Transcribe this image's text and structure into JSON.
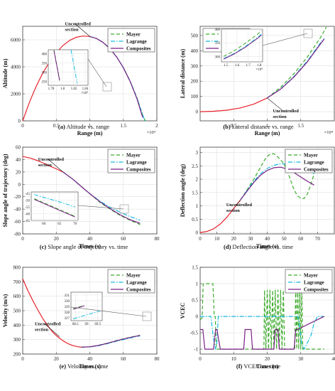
{
  "styles": {
    "uncontrolled": "#e8212b",
    "mayer": "#3cab2b",
    "lagrange": "#14b9e0",
    "composites": "#7a1f86",
    "axis": "#404040",
    "grid": "#d9d9d9"
  },
  "series_labels": {
    "mayer": "Mayer",
    "lagrange": "Lagrange",
    "composites": "Composites"
  },
  "chart_data": [
    {
      "id": "a",
      "type": "line",
      "caption_label": "(a)",
      "caption_text": "Altitude vs. range",
      "xlabel": "Range (m)",
      "ylabel": "Altitude (m)",
      "xlim": [
        0,
        20000
      ],
      "ylim": [
        0,
        7000
      ],
      "xticks": [
        0,
        0.5,
        1,
        1.5,
        2
      ],
      "yticks": [
        0,
        2000,
        4000,
        6000
      ],
      "x_multiplier": "×10⁴",
      "legend": "top-right",
      "annotation": {
        "text": "Uncontrolled section",
        "at": [
          10000,
          6250
        ]
      },
      "uncontrolled": {
        "x": [
          0,
          1000,
          2000,
          3000,
          4000,
          5000,
          6000,
          7000,
          8000,
          9000,
          10000
        ],
        "y": [
          0,
          1380,
          2550,
          3540,
          4370,
          5050,
          5580,
          5960,
          6190,
          6280,
          6250
        ]
      },
      "series": [
        {
          "key": "mayer",
          "x": [
            10000,
            11000,
            12000,
            13000,
            14000,
            15000,
            16000,
            17000,
            18000,
            18300
          ],
          "y": [
            6250,
            6100,
            5800,
            5350,
            4740,
            3950,
            2960,
            1740,
            270,
            0
          ]
        },
        {
          "key": "lagrange",
          "x": [
            10000,
            11000,
            12000,
            13000,
            14000,
            15000,
            16000,
            17000,
            18000,
            18200
          ],
          "y": [
            6250,
            6100,
            5800,
            5350,
            4740,
            3950,
            2960,
            1740,
            280,
            0
          ]
        },
        {
          "key": "composites",
          "x": [
            10000,
            11000,
            12000,
            13000,
            14000,
            15000,
            16000,
            17000,
            17800,
            17900
          ],
          "y": [
            6250,
            6100,
            5800,
            5340,
            4730,
            3930,
            2930,
            1680,
            400,
            250
          ]
        }
      ],
      "inset": {
        "xlim": [
          17750,
          18450
        ],
        "ylim": [
          230,
          420
        ],
        "xticks": [
          1.78,
          1.8,
          1.82,
          1.84
        ],
        "yticks": [
          250,
          300,
          350,
          400
        ],
        "x_multiplier": "×10⁴",
        "series": [
          {
            "key": "mayer",
            "x": [
              17850,
              17950
            ],
            "y": [
              420,
              260
            ]
          },
          {
            "key": "lagrange",
            "x": [
              18150,
              18260
            ],
            "y": [
              420,
              240
            ]
          },
          {
            "key": "composites",
            "x": [
              17850,
              17950
            ],
            "y": [
              415,
              255
            ]
          }
        ]
      }
    },
    {
      "id": "b",
      "type": "line",
      "caption_label": "(b)",
      "caption_text": "Lateral distance vs. range",
      "xlabel": "Range (m)",
      "ylabel": "Lateral distance (m)",
      "xlim": [
        0,
        20000
      ],
      "ylim": [
        -60,
        560
      ],
      "xticks": [
        0.5,
        1,
        1.5
      ],
      "yticks": [
        0,
        100,
        200,
        300,
        400,
        500
      ],
      "x_multiplier": "×10⁴",
      "legend": "top-left",
      "annotation": {
        "text": "Uncontrolled section",
        "at": [
          10000,
          90
        ]
      },
      "uncontrolled": {
        "x": [
          0,
          2000,
          4000,
          6000,
          8000,
          10000
        ],
        "y": [
          0,
          3,
          10,
          25,
          50,
          90
        ]
      },
      "series": [
        {
          "key": "mayer",
          "x": [
            10000,
            12000,
            14000,
            16000,
            18000,
            18800
          ],
          "y": [
            90,
            160,
            250,
            360,
            490,
            555
          ]
        },
        {
          "key": "lagrange",
          "x": [
            10000,
            12000,
            14000,
            16000,
            18000,
            18500
          ],
          "y": [
            90,
            150,
            232,
            334,
            455,
            480
          ]
        },
        {
          "key": "composites",
          "x": [
            10000,
            12000,
            14000,
            16000,
            18000,
            18500
          ],
          "y": [
            90,
            148,
            228,
            328,
            448,
            476
          ]
        }
      ],
      "inset": {
        "xlim": [
          14600,
          18300
        ],
        "ylim": [
          280,
          400
        ],
        "xticks": [
          1.5,
          1.6,
          1.7,
          1.8
        ],
        "yticks": [
          300,
          350,
          400
        ],
        "x_multiplier": "×10⁴",
        "series": [
          {
            "key": "mayer",
            "x": [
              14800,
              15800,
              16800,
              17800,
              18200
            ],
            "y": [
              300,
              322,
              350,
              380,
              395
            ]
          },
          {
            "key": "lagrange",
            "x": [
              14800,
              15800,
              16800,
              17800,
              18200
            ],
            "y": [
              292,
              312,
              338,
              368,
              382
            ]
          },
          {
            "key": "composites",
            "x": [
              14800,
              15800,
              16800,
              17800,
              18200
            ],
            "y": [
              290,
              310,
              335,
              365,
              378
            ]
          }
        ]
      }
    },
    {
      "id": "c",
      "type": "line",
      "caption_label": "(c)",
      "caption_text": "Slope angle of trajectory vs. time",
      "xlabel": "Times (s)",
      "ylabel": "Slope angle of trajectory (deg)",
      "xlim": [
        0,
        80
      ],
      "ylim": [
        -80,
        60
      ],
      "xticks": [
        0,
        20,
        40,
        60,
        80
      ],
      "yticks": [
        -80,
        -60,
        -40,
        -20,
        0,
        20,
        40,
        60
      ],
      "legend": "top-right",
      "annotation": {
        "text": "Uncontrolled section",
        "at": [
          24,
          20
        ]
      },
      "uncontrolled": {
        "x": [
          0,
          5,
          10,
          15,
          20,
          24
        ],
        "y": [
          45,
          42,
          37,
          31,
          25,
          20
        ]
      },
      "series": [
        {
          "key": "mayer",
          "x": [
            24,
            30,
            36,
            40,
            46,
            52,
            58,
            64,
            70
          ],
          "y": [
            20,
            8,
            -6,
            -15,
            -29,
            -40,
            -50,
            -58,
            -65
          ]
        },
        {
          "key": "lagrange",
          "x": [
            24,
            30,
            36,
            40,
            46,
            52,
            58,
            64,
            70
          ],
          "y": [
            20,
            8,
            -6,
            -15,
            -27,
            -37,
            -45,
            -52,
            -58
          ]
        },
        {
          "key": "composites",
          "x": [
            24,
            30,
            36,
            40,
            46,
            52,
            58,
            64,
            70
          ],
          "y": [
            20,
            8,
            -6,
            -15,
            -28,
            -39,
            -49,
            -57,
            -63
          ]
        }
      ],
      "inset": {
        "xlim": [
          56,
          71
        ],
        "ylim": [
          -65,
          -44
        ],
        "xticks": [
          60,
          65,
          70
        ],
        "yticks": [
          -45,
          -50,
          -55,
          -60,
          -65
        ],
        "series": [
          {
            "key": "mayer",
            "x": [
              57,
              60,
              63,
              66,
              70
            ],
            "y": [
              -49,
              -52,
              -55,
              -58,
              -62
            ]
          },
          {
            "key": "lagrange",
            "x": [
              57,
              60,
              63,
              66,
              70
            ],
            "y": [
              -46,
              -48,
              -50,
              -52,
              -55
            ]
          },
          {
            "key": "composites",
            "x": [
              57,
              60,
              63,
              66,
              70
            ],
            "y": [
              -49.5,
              -52.5,
              -55.5,
              -58.5,
              -62.5
            ]
          }
        ]
      }
    },
    {
      "id": "d",
      "type": "line",
      "caption_label": "(d)",
      "caption_text": "Deflection angle vs. time",
      "xlabel": "Times (s)",
      "ylabel": "Deflection angle (deg)",
      "xlim": [
        0,
        80
      ],
      "ylim": [
        -0.05,
        3.2
      ],
      "xticks": [
        0,
        10,
        20,
        30,
        40,
        50,
        60,
        70
      ],
      "yticks": [
        0,
        0.5,
        1,
        1.5,
        2,
        2.5,
        3
      ],
      "legend": "top-right",
      "annotation": {
        "text": "Uncontrolled section",
        "at": [
          24,
          1.2
        ]
      },
      "uncontrolled": {
        "x": [
          0,
          4,
          8,
          12,
          16,
          20,
          24
        ],
        "y": [
          0,
          0.04,
          0.14,
          0.32,
          0.58,
          0.9,
          1.22
        ]
      },
      "series": [
        {
          "key": "mayer",
          "x": [
            24,
            28,
            32,
            36,
            38,
            40,
            42,
            44,
            46,
            48,
            50,
            52,
            54,
            56,
            58,
            60,
            62,
            64,
            66,
            68
          ],
          "y": [
            1.22,
            1.6,
            2.0,
            2.45,
            2.68,
            2.85,
            2.95,
            2.95,
            2.85,
            2.72,
            2.58,
            2.3,
            1.95,
            1.6,
            1.38,
            1.28,
            1.28,
            1.45,
            1.8,
            2.2
          ]
        },
        {
          "key": "lagrange",
          "x": [
            24,
            28,
            32,
            36,
            40,
            44,
            48,
            52,
            56,
            60,
            64,
            68
          ],
          "y": [
            1.22,
            1.58,
            1.92,
            2.2,
            2.4,
            2.52,
            2.58,
            2.56,
            2.5,
            2.42,
            2.32,
            2.2
          ]
        },
        {
          "key": "composites",
          "x": [
            24,
            28,
            32,
            36,
            40,
            44,
            48,
            52,
            56,
            60,
            64,
            68
          ],
          "y": [
            1.22,
            1.55,
            1.88,
            2.15,
            2.33,
            2.43,
            2.45,
            2.38,
            2.25,
            2.08,
            1.92,
            1.78
          ]
        }
      ]
    },
    {
      "id": "e",
      "type": "line",
      "caption_label": "(e)",
      "caption_text": "Velocity vs. time",
      "xlabel": "Times (s)",
      "ylabel": "Velocity (m/s)",
      "xlim": [
        0,
        80
      ],
      "ylim": [
        200,
        800
      ],
      "xticks": [
        0,
        20,
        40,
        60,
        80
      ],
      "yticks": [
        200,
        300,
        400,
        500,
        600,
        700,
        800
      ],
      "legend": "top-right",
      "annotation": {
        "text": "Uncontrolled section",
        "at": [
          22,
          320
        ]
      },
      "uncontrolled": {
        "x": [
          0,
          3,
          6,
          9,
          12,
          15,
          18,
          21,
          24,
          27,
          30,
          33,
          35
        ],
        "y": [
          720,
          640,
          570,
          505,
          445,
          395,
          350,
          318,
          292,
          272,
          258,
          250,
          247
        ]
      },
      "series": [
        {
          "key": "mayer",
          "x": [
            35,
            40,
            45,
            50,
            55,
            60,
            65,
            70
          ],
          "y": [
            247,
            250,
            260,
            274,
            290,
            305,
            318,
            330
          ]
        },
        {
          "key": "lagrange",
          "x": [
            35,
            40,
            45,
            50,
            55,
            60,
            65,
            70
          ],
          "y": [
            247,
            249,
            257,
            270,
            285,
            300,
            313,
            326
          ]
        },
        {
          "key": "composites",
          "x": [
            35,
            40,
            45,
            50,
            55,
            60,
            65,
            70
          ],
          "y": [
            247,
            250,
            259,
            273,
            289,
            304,
            317,
            329
          ]
        }
      ],
      "inset": {
        "xlim": [
          68.3,
          69.7
        ],
        "ylim": [
          326.5,
          331.5
        ],
        "xticks": [
          68.5,
          69,
          69.5
        ],
        "yticks": [
          331,
          330,
          329,
          328,
          327
        ],
        "series": [
          {
            "key": "mayer",
            "x": [
              68.4,
              68.9
            ],
            "y": [
              328.6,
              329.2
            ]
          },
          {
            "key": "lagrange",
            "x": [
              68.4,
              69.6
            ],
            "y": [
              326.8,
              328.2
            ]
          },
          {
            "key": "composites",
            "x": [
              68.4,
              68.9
            ],
            "y": [
              328.5,
              329.1
            ]
          }
        ]
      }
    },
    {
      "id": "f",
      "type": "line",
      "caption_label": "(f)",
      "caption_text": "VCEC vs. time",
      "xlabel": "Times (s)",
      "ylabel": "VCEC",
      "xlim": [
        0,
        40
      ],
      "ylim": [
        -1.15,
        1.5
      ],
      "xticks": [
        0,
        10,
        20,
        30,
        40
      ],
      "yticks": [
        -1,
        -0.5,
        0,
        0.5,
        1,
        1.5
      ],
      "legend": "top-right",
      "series": [
        {
          "key": "mayer",
          "x": [
            0,
            0.6,
            0.9,
            1.8,
            2.6,
            3.2,
            3.8,
            4.2,
            4.5,
            4.8,
            5,
            19,
            19.2,
            19.6,
            20,
            20.4,
            20.8,
            21.2,
            21.6,
            22,
            22.4,
            22.8,
            23.2,
            23.6,
            24,
            24.4,
            24.8,
            25.2,
            25.6,
            28.2,
            28.5,
            28.8,
            29.1,
            29.4,
            29.7,
            30,
            30.3,
            30.6,
            31,
            37
          ],
          "y": [
            -0.1,
            -0.05,
            1,
            1,
            1,
            1,
            1,
            0,
            0,
            -1,
            -1,
            -1,
            0.8,
            -1,
            0.8,
            -1,
            0.8,
            -1,
            0.8,
            -1,
            0.8,
            -1,
            0.8,
            -1,
            0.8,
            -1,
            0.8,
            -1,
            -1,
            -1,
            0.9,
            -1,
            0.9,
            -1,
            0.9,
            -1,
            0.9,
            -1,
            -1,
            -1
          ]
        },
        {
          "key": "lagrange",
          "x": [
            0,
            1,
            2.5,
            3.2,
            4,
            4.6,
            5,
            5.4,
            5.8,
            23,
            23.3,
            29.2,
            29.6,
            30.2,
            31,
            33,
            34,
            35,
            36.8
          ],
          "y": [
            0,
            0,
            0,
            0,
            -0.7,
            -1,
            -0.8,
            0,
            0,
            0,
            0,
            0,
            -0.3,
            -0.8,
            -1,
            -0.6,
            -0.2,
            0,
            0
          ]
        },
        {
          "key": "composites",
          "x": [
            0,
            0.8,
            1.4,
            4,
            4.6,
            5,
            6,
            13,
            13.4,
            15.2,
            15.6,
            22,
            22.4,
            23.2,
            23.6,
            28,
            28.5,
            29,
            37
          ],
          "y": [
            -0.4,
            -0.4,
            -1,
            -1,
            -0.4,
            -0.4,
            -1,
            -1,
            -0.4,
            -0.4,
            -1,
            -1,
            -0.4,
            -0.4,
            -1,
            -1,
            -0.4,
            -0.4,
            0
          ]
        }
      ]
    }
  ]
}
